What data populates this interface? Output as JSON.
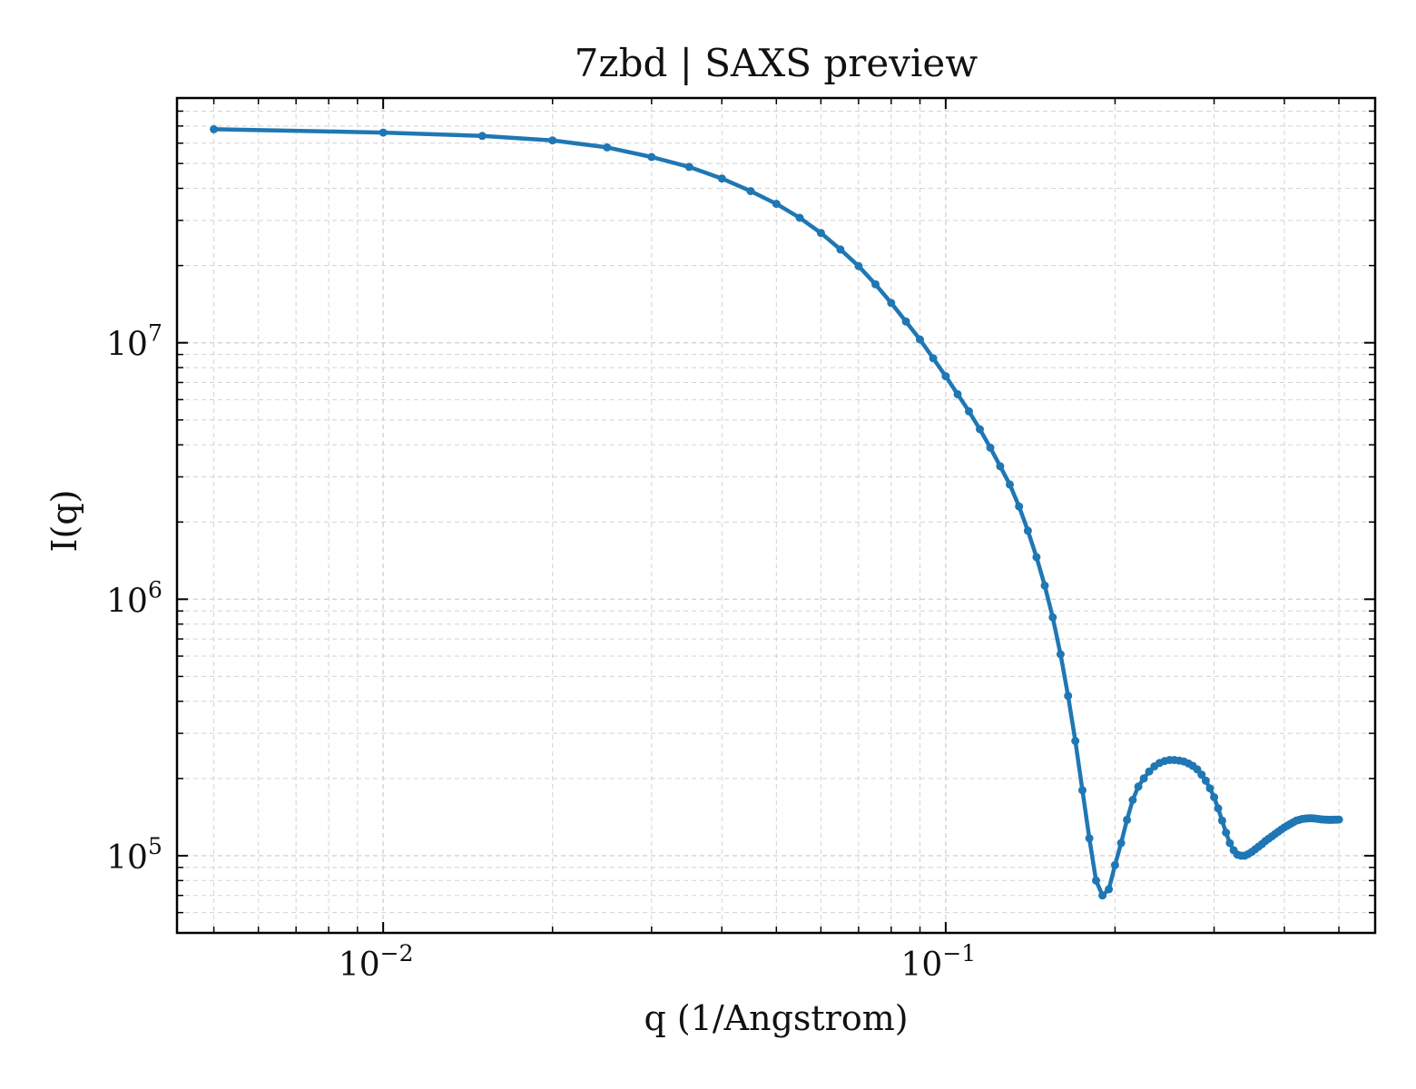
{
  "chart_data": {
    "type": "line",
    "title": "7zbd | SAXS preview",
    "xlabel": "q (1/Angstrom)",
    "ylabel": "I(q)",
    "xscale": "log",
    "yscale": "log",
    "xlim": [
      0.0043,
      0.58
    ],
    "ylim": [
      50000,
      90000000
    ],
    "grid": true,
    "legend": "none",
    "colors": {
      "series": "#1f77b4",
      "grid": "#d3d3d3",
      "axis": "#000000"
    },
    "x_ticks": [
      {
        "value": 0.01,
        "base": "10",
        "exp": "−2"
      },
      {
        "value": 0.1,
        "base": "10",
        "exp": "−1"
      }
    ],
    "y_ticks": [
      {
        "value": 100000,
        "base": "10",
        "exp": "5"
      },
      {
        "value": 1000000,
        "base": "10",
        "exp": "6"
      },
      {
        "value": 10000000,
        "base": "10",
        "exp": "7"
      }
    ],
    "series": [
      {
        "x": [
          0.005,
          0.01,
          0.015,
          0.02,
          0.025,
          0.03,
          0.035,
          0.04,
          0.045,
          0.05,
          0.055,
          0.06,
          0.065,
          0.07,
          0.075,
          0.08,
          0.085,
          0.09,
          0.095,
          0.1,
          0.105,
          0.11,
          0.115,
          0.12,
          0.125,
          0.13,
          0.135,
          0.14,
          0.145,
          0.15,
          0.155,
          0.16,
          0.165,
          0.17,
          0.175,
          0.18,
          0.185,
          0.19,
          0.195,
          0.2,
          0.205,
          0.21,
          0.215,
          0.22,
          0.225,
          0.23,
          0.235,
          0.24,
          0.245,
          0.25,
          0.255,
          0.26,
          0.265,
          0.27,
          0.275,
          0.28,
          0.285,
          0.29,
          0.295,
          0.3,
          0.305,
          0.31,
          0.315,
          0.32,
          0.325,
          0.33,
          0.335,
          0.34,
          0.345,
          0.35,
          0.355,
          0.36,
          0.365,
          0.37,
          0.375,
          0.38,
          0.385,
          0.39,
          0.395,
          0.4,
          0.405,
          0.41,
          0.415,
          0.42,
          0.425,
          0.43,
          0.435,
          0.44,
          0.445,
          0.45,
          0.455,
          0.46,
          0.465,
          0.47,
          0.475,
          0.48,
          0.485,
          0.49,
          0.495,
          0.5
        ],
        "y": [
          68000000,
          66000000,
          64000000,
          61500000,
          57800000,
          53000000,
          48500000,
          43700000,
          39000000,
          34800000,
          30700000,
          26800000,
          23100000,
          19900000,
          16900000,
          14300000,
          12100000,
          10300000,
          8700000,
          7400000,
          6300000,
          5400000,
          4600000,
          3900000,
          3300000,
          2800000,
          2300000,
          1850000,
          1460000,
          1130000,
          850000,
          610000,
          420000,
          280000,
          180000,
          117000,
          80000,
          70000,
          74000,
          92000,
          112000,
          138000,
          165000,
          186000,
          200000,
          213000,
          223000,
          230000,
          234000,
          236000,
          236000,
          235000,
          233000,
          229000,
          224000,
          217000,
          207000,
          196000,
          183000,
          169000,
          153000,
          137000,
          123000,
          112000,
          105000,
          101000,
          100000,
          100000,
          101500,
          103500,
          106000,
          108500,
          111000,
          114000,
          116500,
          119000,
          121500,
          124000,
          126500,
          129000,
          131000,
          133000,
          135000,
          137000,
          138000,
          139000,
          139500,
          139800,
          140000,
          139800,
          139500,
          139000,
          138600,
          138300,
          138100,
          138000,
          138000,
          138100,
          138200,
          138300
        ]
      }
    ]
  }
}
